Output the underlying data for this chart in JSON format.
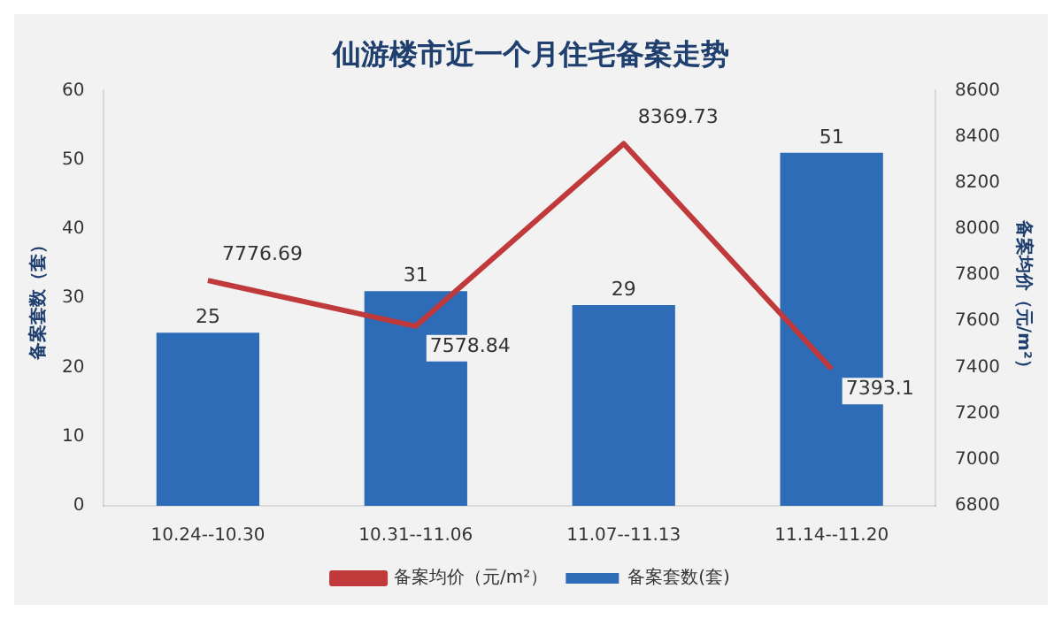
{
  "chart_data": {
    "type": "bar",
    "title": "仙游楼市近一个月住宅备案走势",
    "ylabel": "备案套数（套）",
    "y2label": "备案均价（元/m²）",
    "categories": [
      "10.24--10.30",
      "10.31--11.06",
      "11.07--11.13",
      "11.14--11.20"
    ],
    "series": [
      {
        "name": "备案套数(套)",
        "color": "#2e6cb8",
        "values": [
          25,
          31,
          29,
          51
        ]
      },
      {
        "name": "备案均价（元/m²）",
        "type": "line",
        "axis": "y2",
        "color": "#c0393b",
        "values": [
          7776.69,
          7578.84,
          8369.73,
          7393.1
        ]
      }
    ],
    "ylim": [
      0,
      60
    ],
    "yticks": [
      0,
      10,
      20,
      30,
      40,
      50,
      60
    ],
    "y2lim": [
      6800,
      8600
    ],
    "y2ticks": [
      6800,
      7000,
      7200,
      7400,
      7600,
      7800,
      8000,
      8200,
      8400,
      8600
    ],
    "grid": false,
    "legend": "bottom",
    "data_labels": true,
    "marker": "none"
  }
}
